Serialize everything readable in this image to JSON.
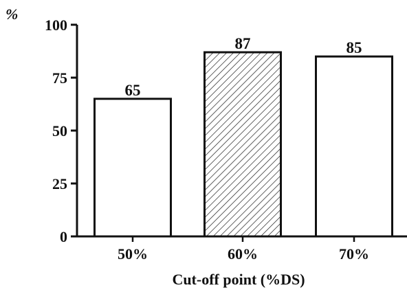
{
  "chart_data": {
    "type": "bar",
    "categories": [
      "50%",
      "60%",
      "70%"
    ],
    "values": [
      65,
      87,
      85
    ],
    "value_labels": [
      "65",
      "87",
      "85"
    ],
    "y_ticks": [
      0,
      25,
      50,
      75,
      100
    ],
    "ylim": [
      0,
      100
    ],
    "ylabel": "%",
    "xlabel": "Cut-off point (%DS)",
    "title": "",
    "grid": false,
    "bar_styles": [
      "open",
      "hatched",
      "open"
    ],
    "colors": {
      "stroke": "#111111",
      "fill": "#ffffff",
      "hatch": "#222222"
    }
  }
}
